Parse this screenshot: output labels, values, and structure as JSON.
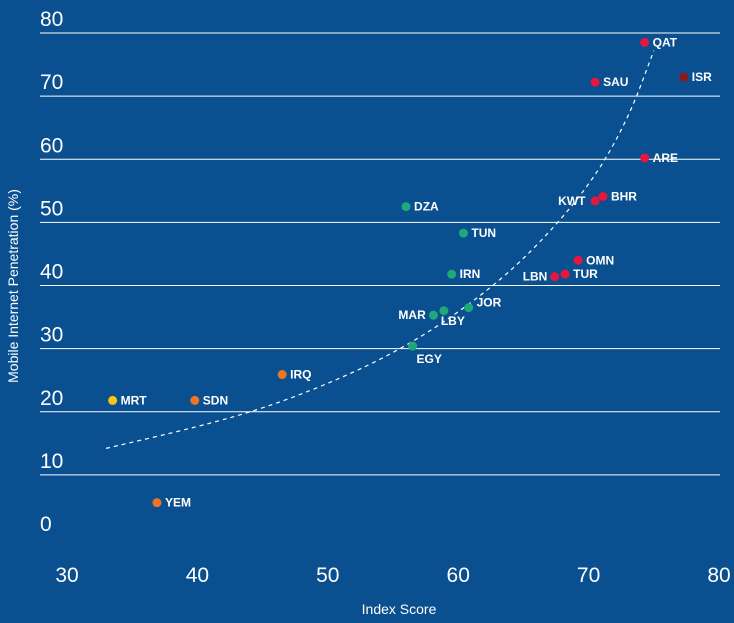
{
  "chart_data": {
    "type": "scatter",
    "title": "",
    "xlabel": "Index Score",
    "ylabel": "Mobile Internet Penetration (%)",
    "xlim": [
      30,
      80
    ],
    "ylim": [
      0,
      80
    ],
    "x_ticks": [
      30,
      40,
      50,
      60,
      70,
      80
    ],
    "y_ticks": [
      0,
      10,
      20,
      30,
      40,
      50,
      60,
      70,
      80
    ],
    "grid": "horizontal",
    "colors": {
      "background": "#0a4f8f",
      "green": "#1fa97a",
      "red": "#e5173f",
      "orange": "#ee7623",
      "yellow": "#f5c518",
      "darkred": "#8b1a1a"
    },
    "points": [
      {
        "label": "QAT",
        "x": 74.3,
        "y": 78.5,
        "color": "#e5173f"
      },
      {
        "label": "ISR",
        "x": 77.3,
        "y": 73.0,
        "color": "#8b1a1a"
      },
      {
        "label": "SAU",
        "x": 70.5,
        "y": 72.2,
        "color": "#e5173f"
      },
      {
        "label": "ARE",
        "x": 74.3,
        "y": 60.2,
        "color": "#e5173f"
      },
      {
        "label": "BHR",
        "x": 71.1,
        "y": 54.1,
        "color": "#e5173f"
      },
      {
        "label": "KWT",
        "x": 70.5,
        "y": 53.4,
        "color": "#e5173f"
      },
      {
        "label": "OMN",
        "x": 69.2,
        "y": 44.0,
        "color": "#e5173f"
      },
      {
        "label": "TUR",
        "x": 68.2,
        "y": 41.8,
        "color": "#e5173f"
      },
      {
        "label": "LBN",
        "x": 67.4,
        "y": 41.4,
        "color": "#e5173f"
      },
      {
        "label": "DZA",
        "x": 56.0,
        "y": 52.5,
        "color": "#1fa97a"
      },
      {
        "label": "TUN",
        "x": 60.4,
        "y": 48.3,
        "color": "#1fa97a"
      },
      {
        "label": "IRN",
        "x": 59.5,
        "y": 41.8,
        "color": "#1fa97a"
      },
      {
        "label": "JOR",
        "x": 60.8,
        "y": 36.5,
        "color": "#1fa97a"
      },
      {
        "label": "LBY",
        "x": 58.9,
        "y": 36.0,
        "color": "#1fa97a"
      },
      {
        "label": "MAR",
        "x": 58.1,
        "y": 35.3,
        "color": "#1fa97a"
      },
      {
        "label": "EGY",
        "x": 56.5,
        "y": 30.4,
        "color": "#1fa97a"
      },
      {
        "label": "IRQ",
        "x": 46.5,
        "y": 25.9,
        "color": "#ee7623"
      },
      {
        "label": "MRT",
        "x": 33.5,
        "y": 21.8,
        "color": "#f5c518"
      },
      {
        "label": "SDN",
        "x": 39.8,
        "y": 21.8,
        "color": "#ee7623"
      },
      {
        "label": "YEM",
        "x": 36.9,
        "y": 5.6,
        "color": "#ee7623"
      }
    ],
    "trendline": {
      "style": "dashed",
      "points": [
        [
          33,
          14.2
        ],
        [
          40,
          17.6
        ],
        [
          45,
          20.5
        ],
        [
          50,
          24.4
        ],
        [
          55,
          29.2
        ],
        [
          60,
          35.6
        ],
        [
          65,
          43.9
        ],
        [
          70,
          55.5
        ],
        [
          73,
          66.2
        ],
        [
          75,
          77.2
        ]
      ]
    }
  }
}
